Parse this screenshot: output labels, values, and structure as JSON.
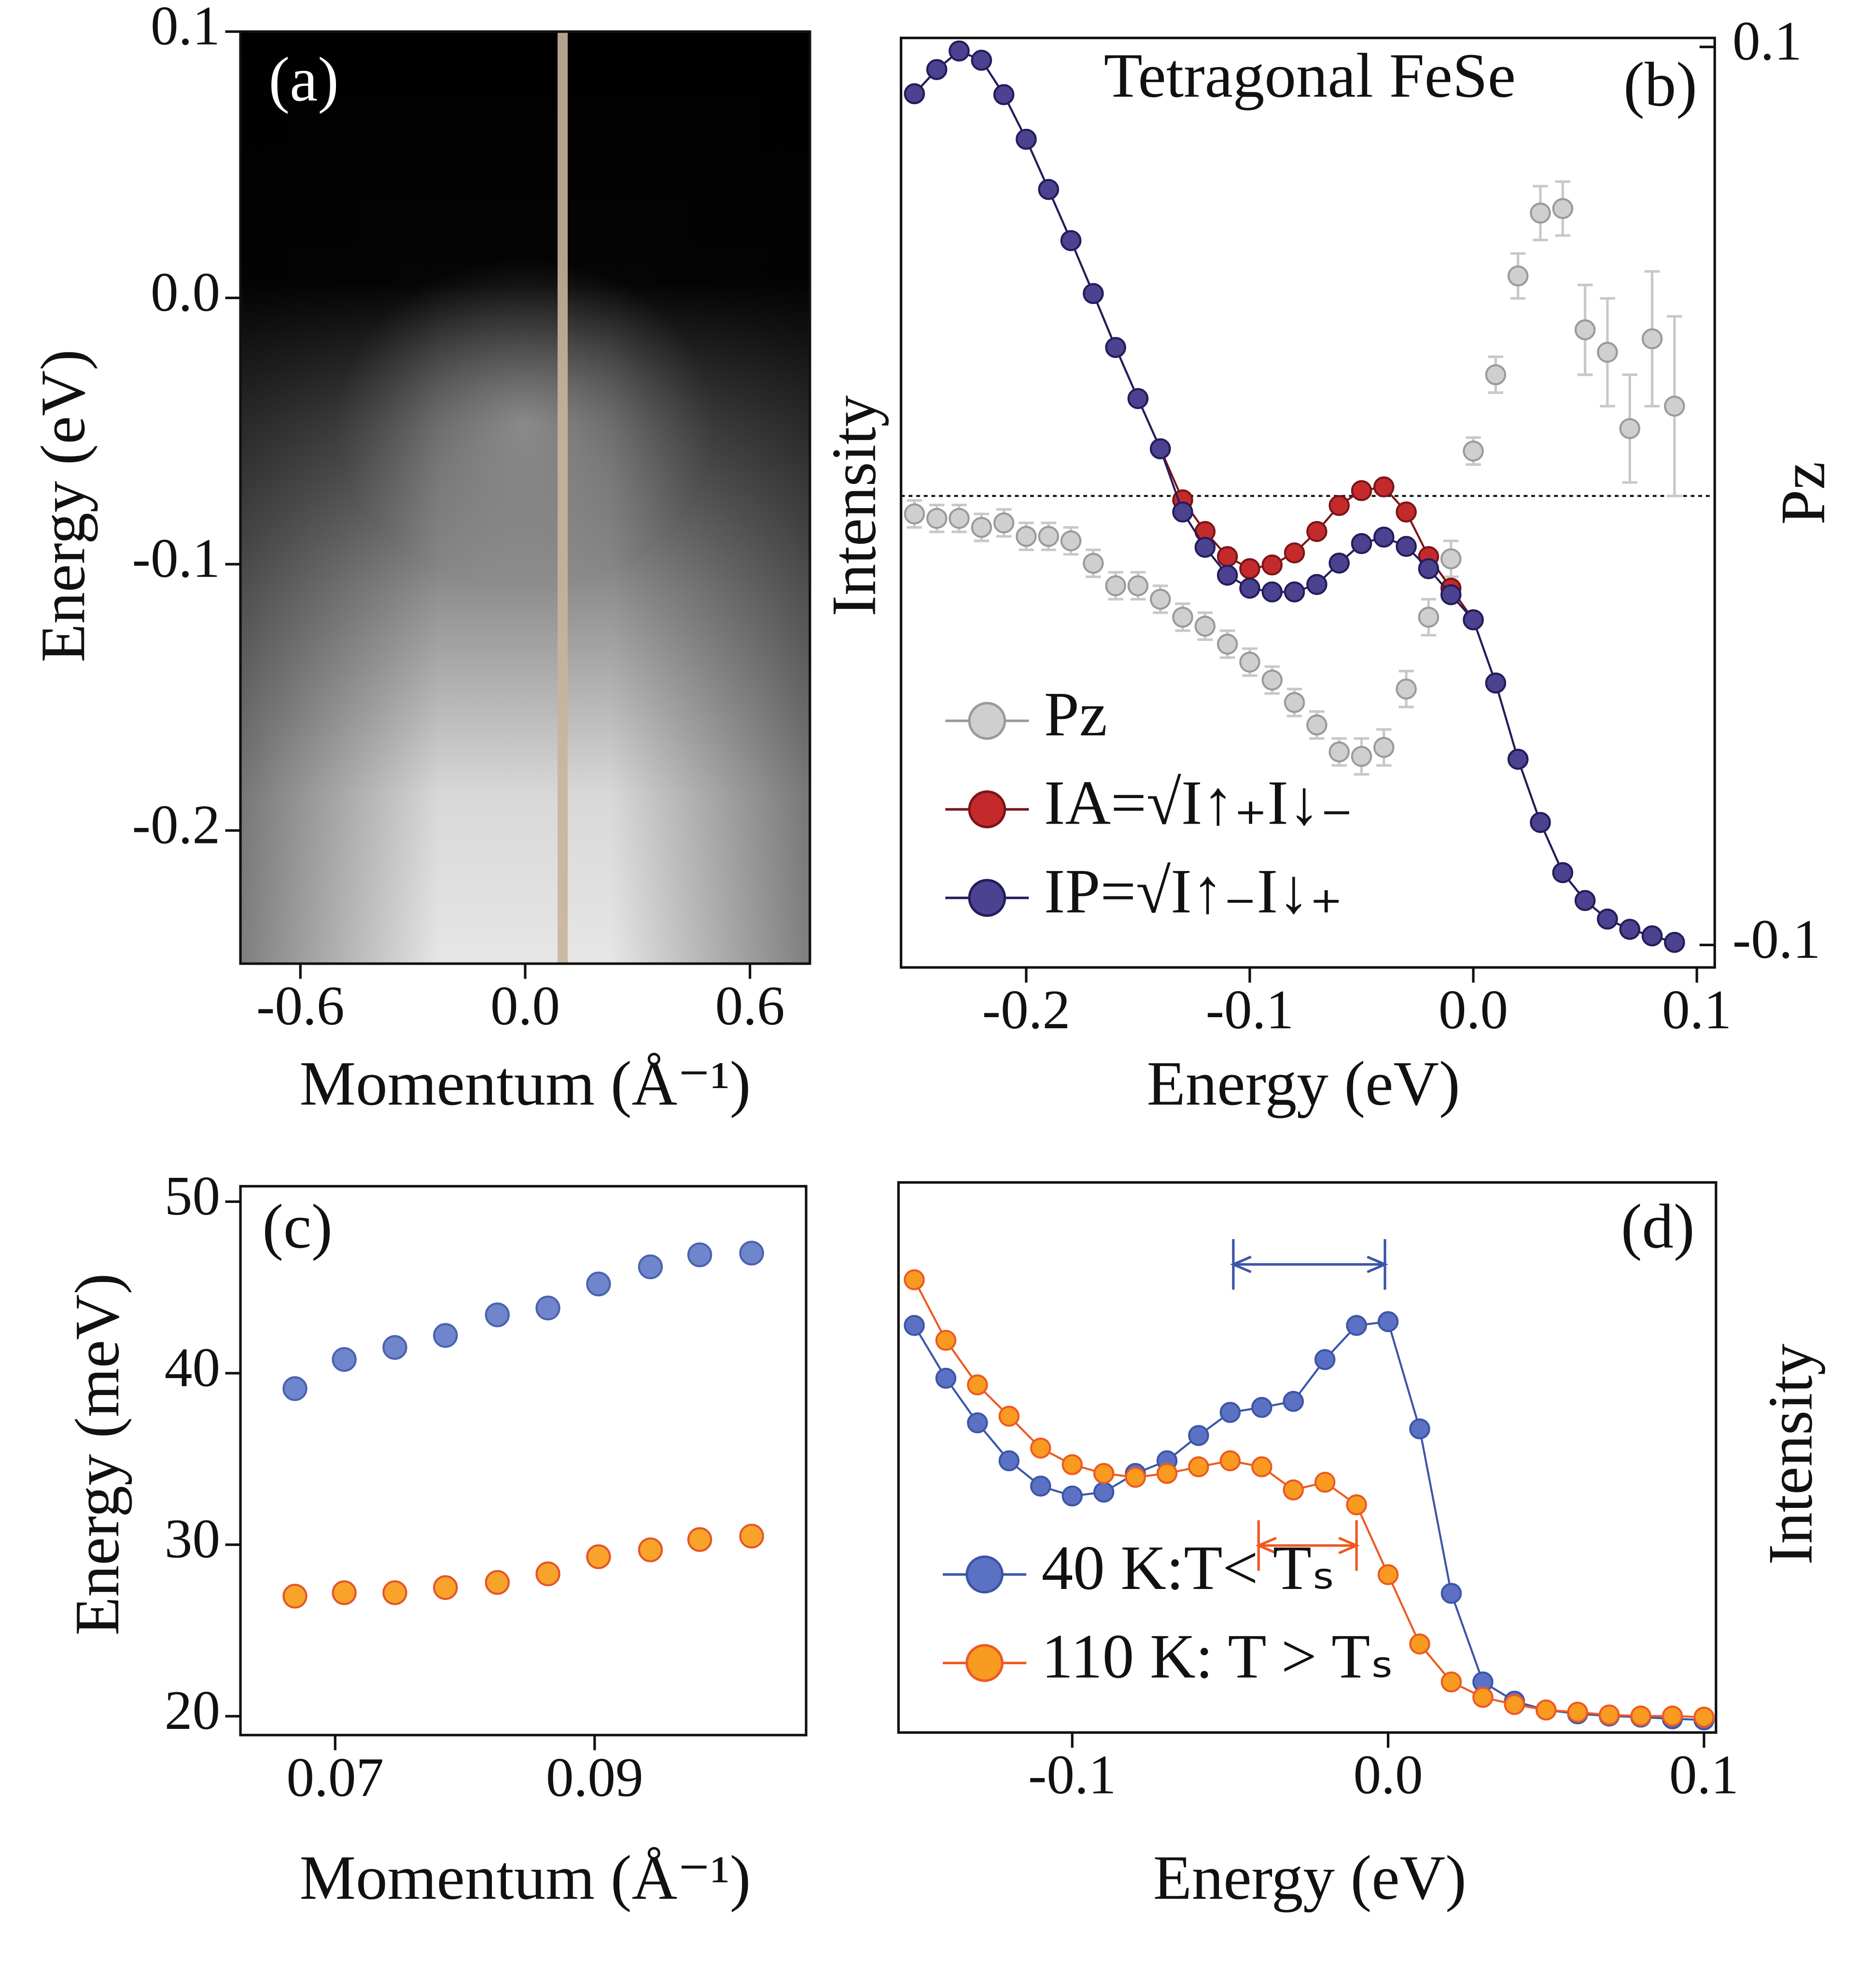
{
  "chart_data": [
    {
      "type": "heatmap",
      "panel_label": "(a)",
      "xlabel": "Momentum (Å⁻¹)",
      "ylabel": "Energy (eV)",
      "xlim": [
        -0.76,
        0.76
      ],
      "ylim": [
        -0.25,
        0.1
      ],
      "xticks": [
        -0.6,
        {
          "value": 0,
          "label": "0.0"
        },
        0.6
      ],
      "yticks": [
        0.1,
        {
          "value": 0,
          "label": "0.0"
        },
        -0.1,
        -0.2
      ],
      "cut_x": 0.1,
      "cut_color": "#c9b49c"
    },
    {
      "type": "line",
      "title": "Tetragonal FeSe",
      "panel_label": "(b)",
      "xlabel": "Energy (eV)",
      "ylabel": "Intensity",
      "y2label": "Pz",
      "xlim": [
        -0.256,
        0.108
      ],
      "ylim": [
        0,
        1
      ],
      "y2lim": [
        -0.105,
        0.102
      ],
      "xticks": [
        -0.2,
        -0.1,
        {
          "value": 0,
          "label": "0.0"
        },
        0.1
      ],
      "y2ticks": [
        0.1,
        -0.1
      ],
      "hline_y2": 0,
      "legend": "lower left",
      "x": [
        -0.25,
        -0.24,
        -0.23,
        -0.22,
        -0.21,
        -0.2,
        -0.19,
        -0.18,
        -0.17,
        -0.16,
        -0.15,
        -0.14,
        -0.13,
        -0.12,
        -0.11,
        -0.1,
        -0.09,
        -0.08,
        -0.07,
        -0.06,
        -0.05,
        -0.04,
        -0.03,
        -0.02,
        -0.01,
        0,
        0.01,
        0.02,
        0.03,
        0.04,
        0.05,
        0.06,
        0.07,
        0.08,
        0.09
      ],
      "series": [
        {
          "name": "Pz",
          "color": "#cfcfcf",
          "edge": "#9a9a9a",
          "axis": "y2",
          "line": false,
          "values": [
            -0.004,
            -0.005,
            -0.005,
            -0.007,
            -0.006,
            -0.009,
            -0.009,
            -0.01,
            -0.015,
            -0.02,
            -0.02,
            -0.023,
            -0.027,
            -0.029,
            -0.033,
            -0.037,
            -0.041,
            -0.046,
            -0.051,
            -0.057,
            -0.058,
            -0.056,
            -0.043,
            -0.027,
            -0.014,
            0.01,
            0.027,
            0.049,
            0.063,
            0.064,
            0.037,
            0.032,
            0.015,
            0.035,
            0.02
          ],
          "errors": [
            0.003,
            0.003,
            0.003,
            0.003,
            0.003,
            0.003,
            0.003,
            0.003,
            0.003,
            0.003,
            0.003,
            0.003,
            0.003,
            0.003,
            0.003,
            0.003,
            0.003,
            0.003,
            0.003,
            0.003,
            0.004,
            0.004,
            0.004,
            0.004,
            0.004,
            0.003,
            0.004,
            0.005,
            0.006,
            0.006,
            0.01,
            0.012,
            0.012,
            0.015,
            0.02
          ]
        },
        {
          "name": "IA=√I↑₊I↓₋",
          "color": "#c42a2c",
          "edge": "#7a1518",
          "line": true,
          "values": [
            0.94,
            0.966,
            0.986,
            0.976,
            0.939,
            0.891,
            0.837,
            0.782,
            0.725,
            0.667,
            0.612,
            0.558,
            0.503,
            0.469,
            0.442,
            0.429,
            0.433,
            0.446,
            0.469,
            0.497,
            0.513,
            0.517,
            0.49,
            0.442,
            0.408,
            0.374,
            0.306,
            0.224,
            0.156,
            0.102,
            0.072,
            0.052,
            0.041,
            0.034,
            0.027
          ]
        },
        {
          "name": "IP=√I↑₋I↓₊",
          "color": "#4b4290",
          "edge": "#241c5c",
          "line": true,
          "values": [
            0.94,
            0.966,
            0.986,
            0.976,
            0.939,
            0.891,
            0.837,
            0.782,
            0.725,
            0.667,
            0.612,
            0.558,
            0.49,
            0.452,
            0.422,
            0.408,
            0.404,
            0.404,
            0.412,
            0.435,
            0.456,
            0.463,
            0.453,
            0.429,
            0.401,
            0.374,
            0.306,
            0.224,
            0.156,
            0.102,
            0.072,
            0.052,
            0.041,
            0.034,
            0.027
          ]
        }
      ]
    },
    {
      "type": "scatter",
      "panel_label": "(c)",
      "xlabel": "Momentum (Å⁻¹)",
      "ylabel": "Energy (meV)",
      "xlim": [
        0.0627,
        0.1063
      ],
      "ylim": [
        18.9,
        50.9
      ],
      "xticks": [
        0.07,
        0.09
      ],
      "yticks": [
        20,
        30,
        40,
        50
      ],
      "x": [
        0.0669,
        0.0707,
        0.0746,
        0.0785,
        0.0825,
        0.0864,
        0.0903,
        0.0943,
        0.0981,
        0.1021
      ],
      "series": [
        {
          "color": "#6f86cc",
          "edge": "#4a62b0",
          "values": [
            39.1,
            40.8,
            41.5,
            42.2,
            43.4,
            43.8,
            45.2,
            46.2,
            46.9,
            47.0
          ]
        },
        {
          "color": "#f8a42a",
          "edge": "#e5542a",
          "values": [
            27.0,
            27.2,
            27.2,
            27.5,
            27.8,
            28.3,
            29.3,
            29.7,
            30.3,
            30.5
          ]
        }
      ]
    },
    {
      "type": "line",
      "panel_label": "(d)",
      "xlabel": "Energy (eV)",
      "ylabel_right": "Intensity",
      "xlim": [
        -0.155,
        0.1038
      ],
      "ylim": [
        0,
        1
      ],
      "xticks": [
        -0.1,
        {
          "value": 0,
          "label": "0.0"
        },
        0.1
      ],
      "legend": "lower left",
      "x": [
        -0.15,
        -0.14,
        -0.13,
        -0.12,
        -0.11,
        -0.1,
        -0.09,
        -0.08,
        -0.07,
        -0.06,
        -0.05,
        -0.04,
        -0.03,
        -0.02,
        -0.01,
        0,
        0.01,
        0.02,
        0.03,
        0.04,
        0.05,
        0.06,
        0.07,
        0.08,
        0.09,
        0.1
      ],
      "series": [
        {
          "name": "40 K:T< Tₛ",
          "color": "#5b72c4",
          "edge": "#3d55a8",
          "line": true,
          "values": [
            0.74,
            0.644,
            0.563,
            0.494,
            0.448,
            0.43,
            0.437,
            0.471,
            0.494,
            0.54,
            0.582,
            0.591,
            0.602,
            0.678,
            0.74,
            0.747,
            0.552,
            0.253,
            0.092,
            0.057,
            0.041,
            0.034,
            0.03,
            0.028,
            0.025,
            0.023
          ]
        },
        {
          "name": "110 K: T > Tₛ",
          "color": "#f89b20",
          "edge": "#ec5a22",
          "line": true,
          "values": [
            0.823,
            0.713,
            0.632,
            0.575,
            0.517,
            0.487,
            0.471,
            0.464,
            0.471,
            0.483,
            0.494,
            0.483,
            0.441,
            0.455,
            0.414,
            0.287,
            0.161,
            0.092,
            0.064,
            0.051,
            0.041,
            0.037,
            0.032,
            0.03,
            0.03,
            0.028
          ]
        }
      ],
      "annotations": [
        {
          "x1": -0.049,
          "x2": -0.001,
          "y": 0.851,
          "color": "#3d55a8"
        },
        {
          "x1": -0.041,
          "x2": -0.01,
          "y": 0.34,
          "color": "#ec5a22"
        }
      ]
    }
  ]
}
